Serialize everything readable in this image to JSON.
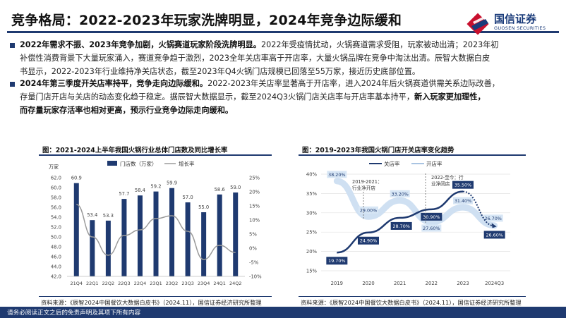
{
  "page": {
    "title": "竞争格局：2022-2023年玩家洗牌明显，2024年竞争边际缓和",
    "logo_cn": "国信证券",
    "logo_en": "GUOSEN SECURITIES",
    "brand_color": "#1f3a70",
    "accent_color": "#c8102e",
    "footer": "请务必阅读正文之后的免责声明及其项下所有内容"
  },
  "paragraphs": [
    {
      "lines": [
        {
          "bold": "2022年需求不振、2023年竞争加剧，火锅赛道玩家阶段洗牌明显。",
          "text": "2022年受疫情扰动，火锅赛道需求受阻，玩家被动出清；2023年初"
        },
        {
          "bold": "",
          "text": "补偿性消费背景下大量玩家涌入，赛道竞争趋于激烈，2023全年关店率高于开店率，大量火锅品牌在竞争中淘汰出清。辰智大数据白皮"
        },
        {
          "bold": "",
          "text": "书显示，2022-2023年行业维持净关店状态，截至2023年Q4火锅门店规模已回落至55万家，接近历史底部位置。"
        }
      ]
    },
    {
      "lines": [
        {
          "bold": "2024年第三季度开关店率持平，竞争走向边际缓和。",
          "text": "2022-2023年关店率显著高于开店率，进入2024年后火锅赛道供需关系边际改善，"
        },
        {
          "bold": "",
          "text": "存量门店开店与关店的动态变化趋于稳定。据辰智大数据显示，截至2024Q3火锅门店关店率与开店率基本持平，",
          "tail_bold": "新入玩家更加理性，"
        },
        {
          "bold": "而存量玩家存活率也相对更高，预示行业竞争边际走向缓和。",
          "text": ""
        }
      ]
    }
  ],
  "chart1": {
    "caption": "图：2021-2024上半年我国火锅行业总体门店数及同比增长率",
    "source": "资料来源：《辰智2024中国餐饮大数据白皮书》（2024.11），国信证券经济研究所整理",
    "unit_label": "万家",
    "legend_bar": "门店数（万家）",
    "legend_line": "增长率",
    "bar_color": "#1f3a70",
    "line_color": "#9a9a9a"
  },
  "chart2": {
    "caption": "图：2019-2023年我国火锅门店开关店率变化趋势",
    "source": "资料来源：《辰智2024中国餐饮大数据白皮书》（2024.11），国信证券经济研究所整理",
    "legend_close": "关店率",
    "legend_open": "开店率",
    "annot1": [
      "2019-2021：",
      "行业净开店"
    ],
    "annot2": [
      "2022-至今：行",
      "业净闭店"
    ],
    "close_color": "#1f3a70",
    "open_color": "#cfe0f2"
  },
  "chart_data": [
    {
      "type": "bar",
      "categories": [
        "21Q4",
        "22Q1",
        "22Q2",
        "22Q3",
        "22Q4",
        "23Q1",
        "23Q2",
        "23Q3",
        "23Q4",
        "24Q1",
        "24Q2"
      ],
      "series": [
        {
          "name": "门店数（万家）",
          "values": [
            60.9,
            53.4,
            53.3,
            57.7,
            58.4,
            59.2,
            59.9,
            57.0,
            55.0,
            58.6,
            59.0
          ],
          "labels": [
            "60.9",
            "53.4",
            "53.3",
            "57.7",
            "58.4",
            "59.2",
            "59.9",
            "57.0",
            "55.0",
            "58.6",
            "59.0"
          ]
        },
        {
          "name": "增长率",
          "type": "line",
          "values": [
            15.5,
            4.0,
            -2.5,
            4.5,
            6.5,
            10.5,
            11.5,
            6.0,
            -4.0,
            1.0,
            -1.5
          ]
        }
      ],
      "ylim": [
        42,
        62
      ],
      "yticks": [
        "42.0",
        "44.0",
        "46.0",
        "48.0",
        "50.0",
        "52.0",
        "54.0",
        "56.0",
        "58.0",
        "60.0",
        "62.0"
      ],
      "y2lim": [
        -10,
        25
      ],
      "y2ticks": [
        "-10%",
        "-5%",
        "0%",
        "5%",
        "10%",
        "15%",
        "20%",
        "25%"
      ],
      "ylabel": "万家",
      "legend": "top"
    },
    {
      "type": "line",
      "x": [
        "2019",
        "2020",
        "2021",
        "2022",
        "2023",
        "2024Q3"
      ],
      "series": [
        {
          "name": "关店率",
          "values": [
            19.7,
            24.9,
            28.7,
            30.9,
            35.5,
            26.6
          ],
          "labels": [
            "19.70%",
            "24.90%",
            "28.70%",
            "30.90%",
            "35.50%",
            "26.60%"
          ]
        },
        {
          "name": "开店率",
          "values": [
            38.2,
            29.0,
            33.2,
            27.6,
            31.4,
            26.7
          ],
          "labels": [
            "38.20%",
            "29.00%",
            "33.20%",
            "27.60%",
            "31.40%",
            "26.70%"
          ]
        }
      ],
      "ylim": [
        15,
        40
      ],
      "yticks": [
        "15%",
        "20%",
        "25%",
        "30%",
        "35%",
        "40%"
      ],
      "legend": "top",
      "grid": true
    }
  ]
}
